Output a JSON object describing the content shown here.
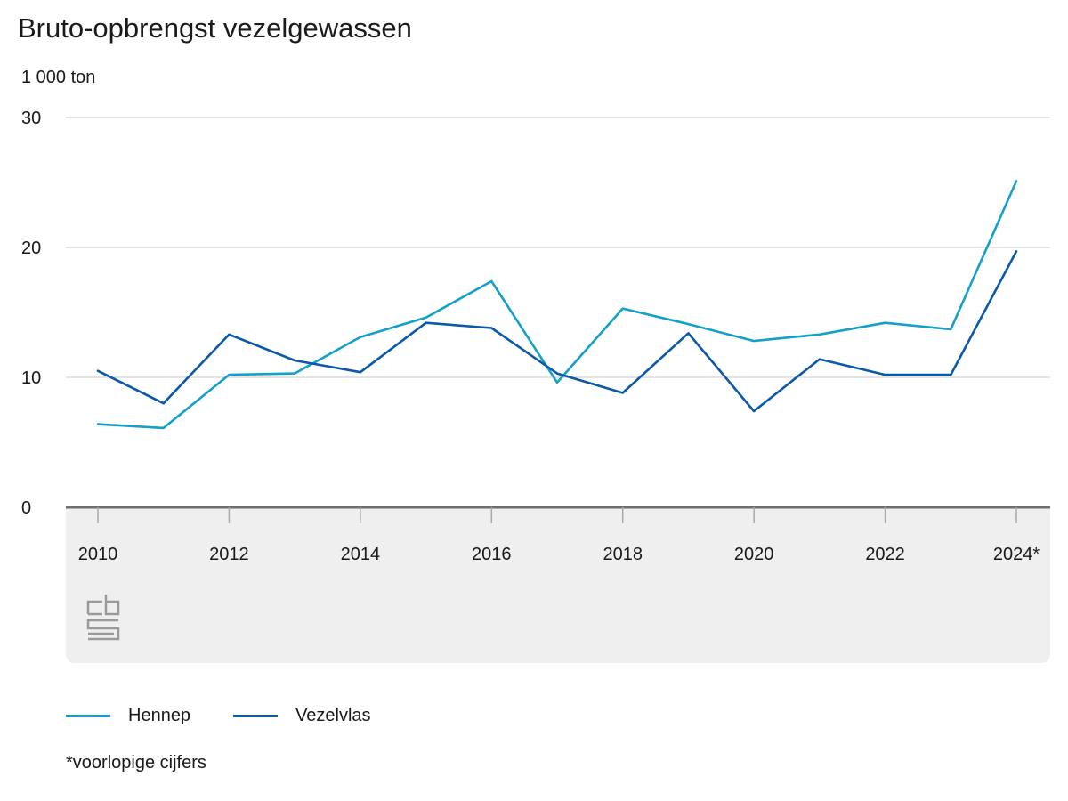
{
  "header": {
    "title": "Bruto-opbrengst vezelgewassen",
    "unit": "1 000 ton"
  },
  "colors": {
    "hennep": "#15a0c9",
    "vezelvlas": "#0b5aa9",
    "grid": "#c8c8c8",
    "axis": "#6e6e6e",
    "panel": "#efefef"
  },
  "chart_data": {
    "type": "line",
    "title": "Bruto-opbrengst vezelgewassen",
    "ylabel": "1 000 ton",
    "xlabel": "",
    "x": [
      2010,
      2011,
      2012,
      2013,
      2014,
      2015,
      2016,
      2017,
      2018,
      2019,
      2020,
      2021,
      2022,
      2023,
      2024
    ],
    "xtick_values": [
      2010,
      2012,
      2014,
      2016,
      2018,
      2020,
      2022,
      2024
    ],
    "xtick_labels": [
      "2010",
      "2012",
      "2014",
      "2016",
      "2018",
      "2020",
      "2022",
      "2024*"
    ],
    "ylim": [
      0,
      30
    ],
    "yticks": [
      0,
      10,
      20,
      30
    ],
    "grid": true,
    "legend": "bottom-left",
    "series": [
      {
        "name": "Hennep",
        "values": [
          6.4,
          6.1,
          10.2,
          10.3,
          13.1,
          14.6,
          17.4,
          9.6,
          15.3,
          14.1,
          12.8,
          13.3,
          14.2,
          13.7,
          25.1
        ]
      },
      {
        "name": "Vezelvlas",
        "values": [
          10.5,
          8.0,
          13.3,
          11.3,
          10.4,
          14.2,
          13.8,
          10.3,
          8.8,
          13.4,
          7.4,
          11.4,
          10.2,
          10.2,
          19.7
        ]
      }
    ]
  },
  "footnote": "*voorlopige cijfers"
}
